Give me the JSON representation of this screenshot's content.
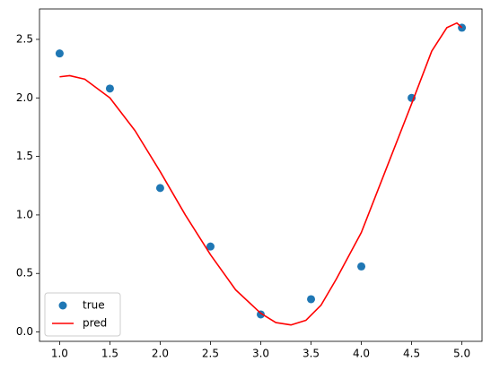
{
  "chart_data": {
    "type": "scatter",
    "xlim": [
      0.8,
      5.2
    ],
    "ylim": [
      -0.08,
      2.76
    ],
    "xticks": [
      {
        "value": 1,
        "label": "1.0"
      },
      1.5,
      {
        "value": 2,
        "label": "2.0"
      },
      2.5,
      {
        "value": 3,
        "label": "3.0"
      },
      3.5,
      {
        "value": 4,
        "label": "4.0"
      },
      4.5,
      {
        "value": 5,
        "label": "5.0"
      }
    ],
    "yticks": [
      {
        "value": 0,
        "label": "0.0"
      },
      0.5,
      {
        "value": 1,
        "label": "1.0"
      },
      1.5,
      {
        "value": 2,
        "label": "2.0"
      },
      2.5
    ],
    "legend": "lower left",
    "series": [
      {
        "name": "true",
        "type": "scatter",
        "color": "#1f77b4",
        "x": [
          1,
          1.5,
          2,
          2.5,
          3,
          3.5,
          4,
          4.5,
          5
        ],
        "values": [
          2.38,
          2.08,
          1.23,
          0.73,
          0.15,
          0.28,
          0.56,
          2.0,
          2.6
        ]
      },
      {
        "name": "pred",
        "type": "line",
        "color": "#ff0000",
        "x": [
          1,
          1.1,
          1.25,
          1.5,
          1.75,
          2,
          2.25,
          2.5,
          2.75,
          3,
          3.15,
          3.3,
          3.45,
          3.6,
          3.75,
          4,
          4.25,
          4.5,
          4.7,
          4.85,
          4.95,
          5
        ],
        "values": [
          2.18,
          2.19,
          2.16,
          2.0,
          1.72,
          1.37,
          1.0,
          0.66,
          0.36,
          0.16,
          0.08,
          0.06,
          0.1,
          0.23,
          0.45,
          0.85,
          1.4,
          1.95,
          2.4,
          2.6,
          2.64,
          2.6
        ]
      }
    ]
  }
}
